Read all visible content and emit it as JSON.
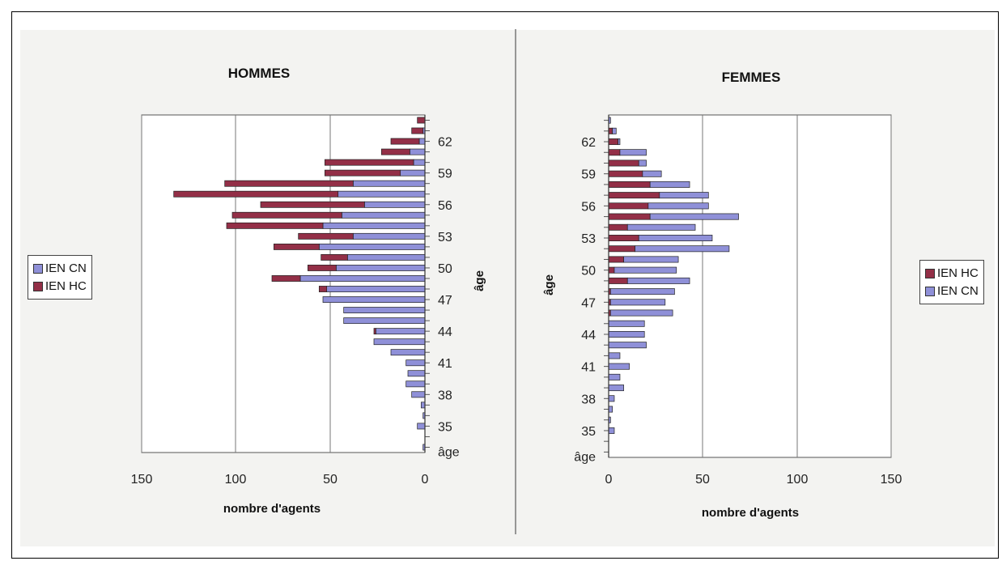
{
  "colors": {
    "IEN CN": "#8f90d8",
    "IEN HC": "#932f47"
  },
  "chart_data": [
    {
      "type": "bar",
      "title": "HOMMES",
      "xlabel": "nombre d'agents",
      "ylabel": "âge",
      "orientation": "horizontal-stacked",
      "x_direction": "reversed",
      "xlim": [
        0,
        150
      ],
      "xticks": [
        "150",
        "100",
        "50",
        "0"
      ],
      "ytick_labels": [
        "âge",
        "35",
        "38",
        "41",
        "44",
        "47",
        "50",
        "53",
        "56",
        "59",
        "62"
      ],
      "legend": [
        "IEN CN",
        "IEN HC"
      ],
      "legend_position": "left",
      "categories": [
        33,
        34,
        35,
        36,
        37,
        38,
        39,
        40,
        41,
        42,
        43,
        44,
        45,
        46,
        47,
        48,
        49,
        50,
        51,
        52,
        53,
        54,
        55,
        56,
        57,
        58,
        59,
        60,
        61,
        62,
        63,
        64
      ],
      "series": [
        {
          "name": "IEN CN",
          "values": [
            1,
            0,
            4,
            1,
            2,
            7,
            10,
            9,
            10,
            18,
            27,
            26,
            43,
            43,
            54,
            52,
            66,
            47,
            41,
            56,
            38,
            54,
            44,
            32,
            46,
            38,
            13,
            6,
            8,
            3,
            1,
            0
          ]
        },
        {
          "name": "IEN HC",
          "values": [
            0,
            0,
            0,
            0,
            0,
            0,
            0,
            0,
            0,
            0,
            0,
            1,
            0,
            0,
            0,
            4,
            15,
            15,
            14,
            24,
            29,
            51,
            58,
            55,
            87,
            68,
            40,
            47,
            15,
            15,
            6,
            4
          ]
        }
      ]
    },
    {
      "type": "bar",
      "title": "FEMMES",
      "xlabel": "nombre d'agents",
      "ylabel": "âge",
      "orientation": "horizontal-stacked",
      "xlim": [
        0,
        150
      ],
      "xticks": [
        "0",
        "50",
        "100",
        "150"
      ],
      "ytick_labels": [
        "âge",
        "35",
        "38",
        "41",
        "44",
        "47",
        "50",
        "53",
        "56",
        "59",
        "62"
      ],
      "legend": [
        "IEN HC",
        "IEN CN"
      ],
      "legend_position": "right",
      "categories": [
        33,
        34,
        35,
        36,
        37,
        38,
        39,
        40,
        41,
        42,
        43,
        44,
        45,
        46,
        47,
        48,
        49,
        50,
        51,
        52,
        53,
        54,
        55,
        56,
        57,
        58,
        59,
        60,
        61,
        62,
        63,
        64
      ],
      "series": [
        {
          "name": "IEN HC",
          "values": [
            0,
            0,
            0,
            0,
            0,
            0,
            0,
            0,
            0,
            0,
            0,
            0,
            0,
            1,
            1,
            1,
            10,
            3,
            8,
            14,
            16,
            10,
            22,
            21,
            27,
            22,
            18,
            16,
            6,
            5,
            2,
            0
          ]
        },
        {
          "name": "IEN CN",
          "values": [
            0,
            0,
            3,
            1,
            2,
            3,
            8,
            6,
            11,
            6,
            20,
            19,
            19,
            33,
            29,
            34,
            33,
            33,
            29,
            50,
            39,
            36,
            47,
            32,
            26,
            21,
            10,
            4,
            14,
            1,
            2,
            1
          ]
        }
      ]
    }
  ]
}
